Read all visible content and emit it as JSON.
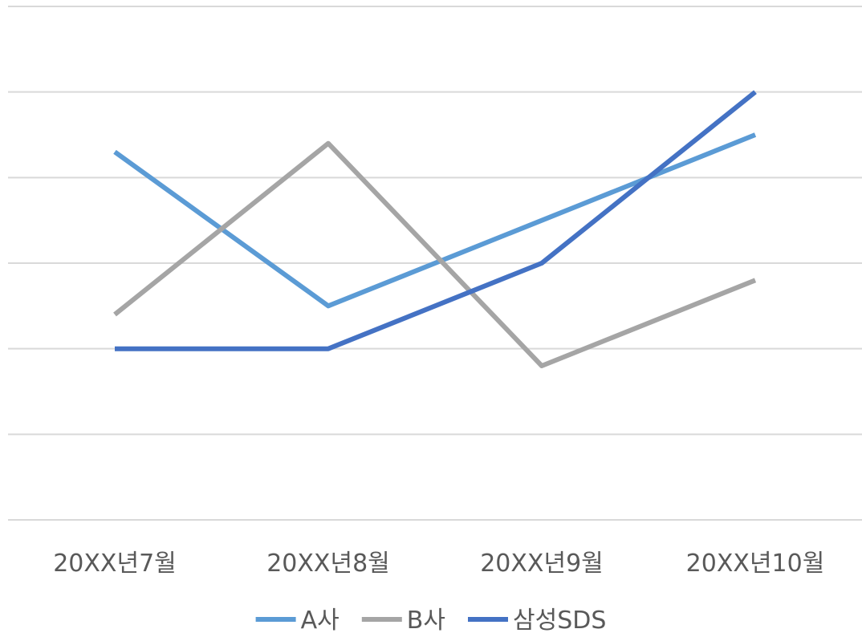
{
  "chart_data": {
    "type": "line",
    "categories": [
      "20XX년7월",
      "20XX년8월",
      "20XX년9월",
      "20XX년10월"
    ],
    "ylim": [
      0,
      6
    ],
    "grid": true,
    "legend_position": "bottom",
    "series": [
      {
        "name": "A사",
        "color": "#5b9bd5",
        "values": [
          4.3,
          2.5,
          3.5,
          4.5
        ]
      },
      {
        "name": "B사",
        "color": "#a5a5a5",
        "values": [
          2.4,
          4.4,
          1.8,
          2.8
        ]
      },
      {
        "name": "삼성SDS",
        "color": "#4472c4",
        "values": [
          2.0,
          2.0,
          3.0,
          5.0
        ]
      }
    ]
  }
}
